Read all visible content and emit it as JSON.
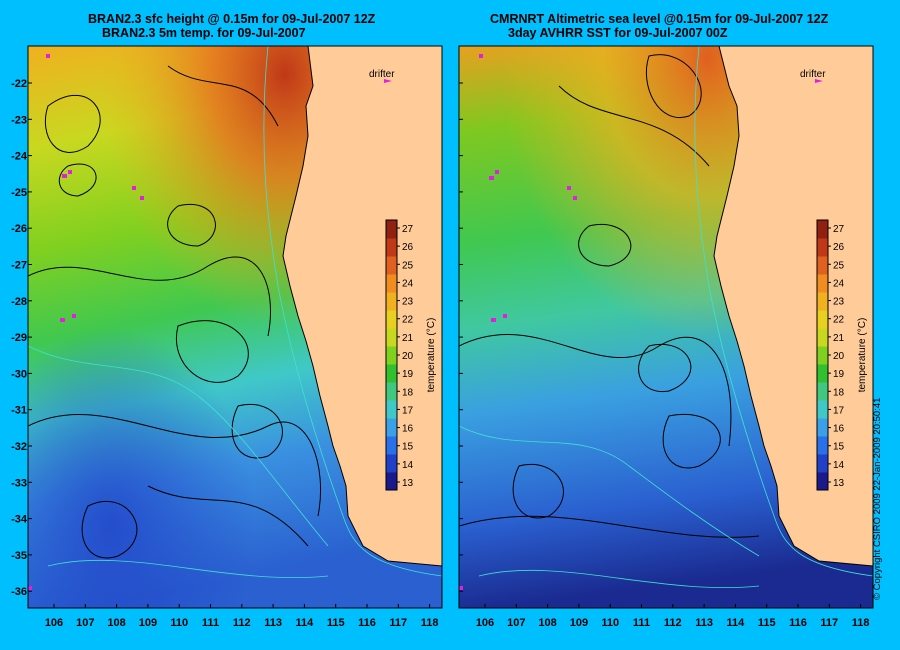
{
  "left_panel": {
    "title_line1": "BRAN2.3 sfc height @ 0.15m for 09-Jul-2007 12Z",
    "title_line2": "BRAN2.3 5m temp. for 09-Jul-2007",
    "drifter_label": "drifter"
  },
  "right_panel": {
    "title_line1": "CMRNRT Altimetric sea level  @0.15m  for 09-Jul-2007 12Z",
    "title_line2": "3day AVHRR SST for 09-Jul-2007 00Z",
    "drifter_label": "drifter"
  },
  "colorbar": {
    "ticks": [
      "27",
      "26",
      "25",
      "24",
      "23",
      "22",
      "21",
      "20",
      "19",
      "18",
      "17",
      "16",
      "15",
      "14",
      "13"
    ],
    "title": "temperature (°C)",
    "colors": [
      "#1a1a8c",
      "#2040c8",
      "#2a70e8",
      "#3aa0e8",
      "#40c8c8",
      "#40c880",
      "#30c030",
      "#80d020",
      "#c8d820",
      "#e8d020",
      "#f0b020",
      "#f08c20",
      "#e06020",
      "#c03818",
      "#902010"
    ]
  },
  "y_ticks": [
    "-22",
    "-23",
    "-24",
    "-25",
    "-26",
    "-27",
    "-28",
    "-29",
    "-30",
    "-31",
    "-32",
    "-33",
    "-34",
    "-35",
    "-36"
  ],
  "x_ticks": [
    "106",
    "107",
    "108",
    "109",
    "110",
    "111",
    "112",
    "113",
    "114",
    "115",
    "116",
    "117",
    "118"
  ],
  "copyright": "© Copyright CSIRO 2009",
  "timestamp": "22-Jan-2009 20:50:41",
  "colors": {
    "background": "#00bfff",
    "land": "#ffcc99",
    "contour": "#000000",
    "isobath": "#40e0d0",
    "drifter": "#e020e0"
  }
}
